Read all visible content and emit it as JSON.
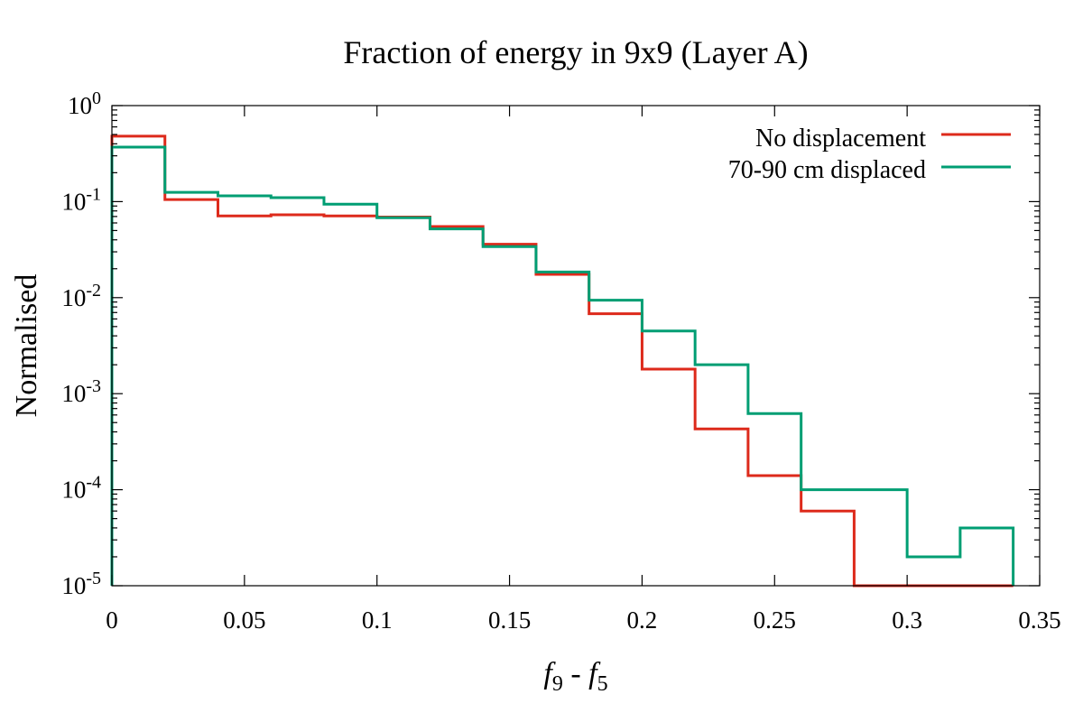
{
  "chart_data": {
    "type": "histogram-step",
    "title": "Fraction of energy in 9x9 (Layer A)",
    "xlabel": {
      "f1": "f",
      "sub1": "9",
      "sep": " - ",
      "f2": "f",
      "sub2": "5"
    },
    "ylabel": "Normalised",
    "xlim": [
      0,
      0.35
    ],
    "ylim": [
      1e-05,
      1
    ],
    "yscale": "log",
    "legend_position": "top-right",
    "x_ticks": [
      {
        "value": 0,
        "label": "0"
      },
      {
        "value": 0.05,
        "label": "0.05"
      },
      {
        "value": 0.1,
        "label": "0.1"
      },
      {
        "value": 0.15,
        "label": "0.15"
      },
      {
        "value": 0.2,
        "label": "0.2"
      },
      {
        "value": 0.25,
        "label": "0.25"
      },
      {
        "value": 0.3,
        "label": "0.3"
      },
      {
        "value": 0.35,
        "label": "0.35"
      }
    ],
    "y_ticks": [
      {
        "exp": 0,
        "base": "10",
        "sup": "0"
      },
      {
        "exp": -1,
        "base": "10",
        "sup": "-1"
      },
      {
        "exp": -2,
        "base": "10",
        "sup": "-2"
      },
      {
        "exp": -3,
        "base": "10",
        "sup": "-3"
      },
      {
        "exp": -4,
        "base": "10",
        "sup": "-4"
      },
      {
        "exp": -5,
        "base": "10",
        "sup": "-5"
      }
    ],
    "bin_edges": [
      0,
      0.02,
      0.04,
      0.06,
      0.08,
      0.1,
      0.12,
      0.14,
      0.16,
      0.18,
      0.2,
      0.22,
      0.24,
      0.26,
      0.28,
      0.3,
      0.32,
      0.34
    ],
    "series": [
      {
        "name": "No displacement",
        "color": "#dd2a1b",
        "values": [
          0.48,
          0.105,
          0.071,
          0.073,
          0.071,
          0.069,
          0.055,
          0.036,
          0.0175,
          0.0068,
          0.0018,
          0.00043,
          0.00014,
          6e-05,
          0,
          0,
          0
        ]
      },
      {
        "name": "70-90 cm displaced",
        "color": "#009e73",
        "values": [
          0.37,
          0.125,
          0.115,
          0.11,
          0.094,
          0.068,
          0.052,
          0.034,
          0.0185,
          0.0094,
          0.0045,
          0.002,
          0.00062,
          0.0001,
          0.0001,
          2e-05,
          4e-05
        ]
      }
    ]
  }
}
